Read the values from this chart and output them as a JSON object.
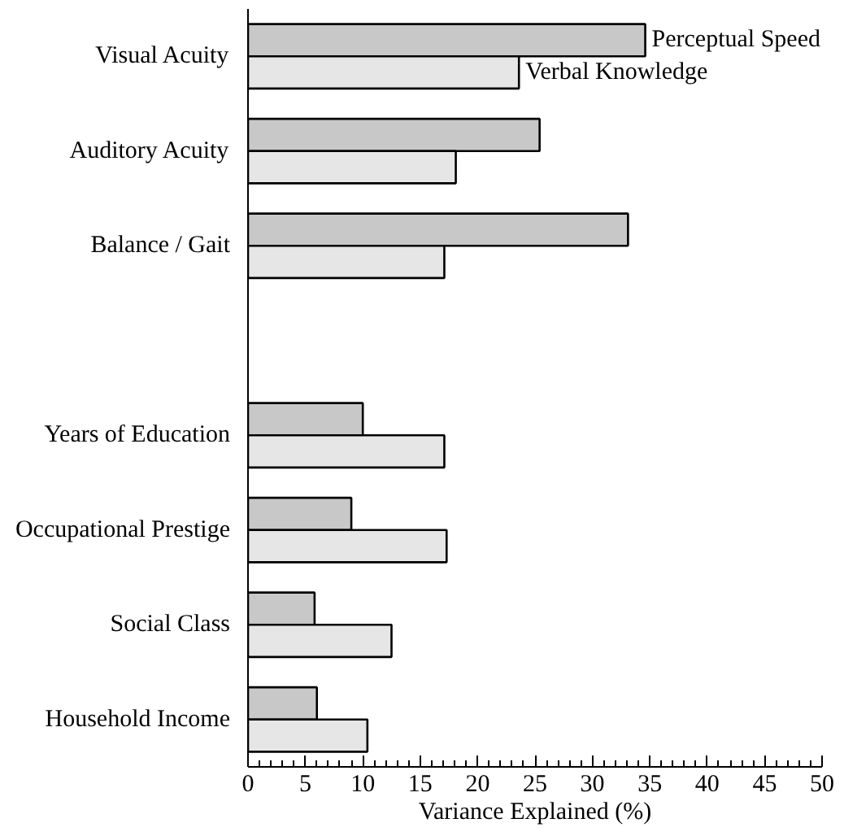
{
  "chart_data": {
    "type": "bar",
    "orientation": "horizontal",
    "xlabel": "Variance Explained (%)",
    "categories": [
      "Visual Acuity",
      "Auditory Acuity",
      "Balance / Gait",
      null,
      "Years of Education",
      "Occupational Prestige",
      "Social Class",
      "Household Income"
    ],
    "series": [
      {
        "name": "Perceptual Speed",
        "color": "#c8c8c8",
        "values": [
          34.6,
          25.4,
          33.1,
          null,
          10.0,
          9.0,
          5.8,
          6.0
        ]
      },
      {
        "name": "Verbal Knowledge",
        "color": "#e6e6e6",
        "values": [
          23.6,
          18.1,
          17.1,
          null,
          17.1,
          17.3,
          12.5,
          10.4
        ]
      }
    ],
    "xlim": [
      0,
      50
    ],
    "xticks": [
      0,
      5,
      10,
      15,
      20,
      25,
      30,
      35,
      40,
      45,
      50
    ],
    "grid": false
  }
}
